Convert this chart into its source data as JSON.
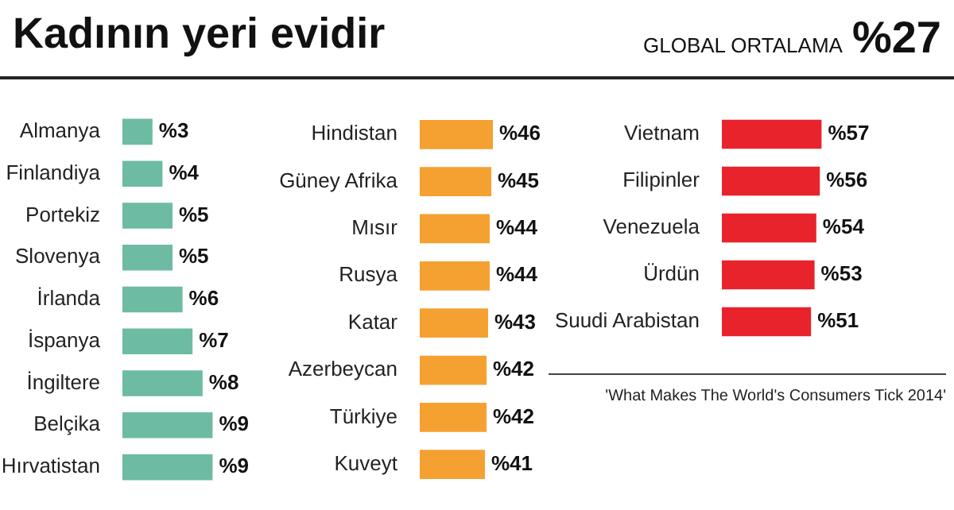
{
  "chart_data": [
    {
      "type": "other",
      "title": "Kadının yeri evidir",
      "annotations": [
        "GLOBAL ORTALAMA",
        "%27",
        "'What Makes The World's Consumers Tick 2014'"
      ]
    },
    {
      "type": "bar",
      "orientation": "horizontal",
      "categories": [
        "Almanya",
        "Finlandiya",
        "Portekiz",
        "Slovenya",
        "İrlanda",
        "İspanya",
        "İngiltere",
        "Belçika",
        "Hırvatistan"
      ],
      "values": [
        3,
        4,
        5,
        5,
        6,
        7,
        8,
        9,
        9
      ],
      "value_labels": [
        "%3",
        "%4",
        "%5",
        "%5",
        "%6",
        "%7",
        "%8",
        "%9",
        "%9"
      ],
      "color": "#6dbba2"
    },
    {
      "type": "bar",
      "orientation": "horizontal",
      "categories": [
        "Hindistan",
        "Güney Afrika",
        "Mısır",
        "Rusya",
        "Katar",
        "Azerbeycan",
        "Türkiye",
        "Kuveyt"
      ],
      "values": [
        46,
        45,
        44,
        44,
        43,
        42,
        42,
        41
      ],
      "value_labels": [
        "%46",
        "%45",
        "%44",
        "%44",
        "%43",
        "%42",
        "%42",
        "%41"
      ],
      "color": "#f5a131"
    },
    {
      "type": "bar",
      "orientation": "horizontal",
      "categories": [
        "Vietnam",
        "Filipinler",
        "Venezuela",
        "Ürdün",
        "Suudi Arabistan"
      ],
      "values": [
        57,
        56,
        54,
        53,
        51
      ],
      "value_labels": [
        "%57",
        "%56",
        "%54",
        "%53",
        "%51"
      ],
      "color": "#e8232b"
    }
  ]
}
